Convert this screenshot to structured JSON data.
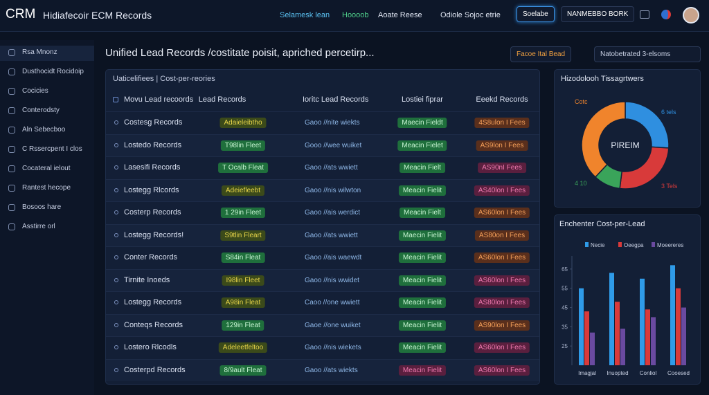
{
  "header": {
    "logo": "CRM",
    "title": "Hidiafecoir ECM Records",
    "nav": [
      "Selamesk lean",
      "Hoooob",
      "Aoate Reese",
      "Odiole Sojoc etrie"
    ],
    "button": "Soelabe",
    "account": "NANMEBBO BORK"
  },
  "sidebar": {
    "items": [
      "Rsa Mnonz",
      "Dusthocidt Rocidoip",
      "Cocicies",
      "Conterodsty",
      "Aln Sebecboo",
      "C Rssercpent I clos",
      "Cocateral ielout",
      "Rantest hecope",
      "Bosoos hare",
      "Asstirre orl"
    ]
  },
  "main": {
    "title": "Unified Lead Records /costitate poisit, apriched percetirp...",
    "filter": "Facoe Ital Bead",
    "select": "Natobetrated 3-elsoms"
  },
  "table": {
    "caption": "Uaticelifiees | Cost-per-reories",
    "columns": [
      "Movu Lead recoords",
      "Lead Records",
      "Ioritc Lead Records",
      "Lostiei fiprar",
      "Eeekd Records"
    ],
    "rows": [
      [
        "Costesg Records",
        "Adaieleibtho",
        "Gaoo //nite wiekts",
        "Maecin Fieldt",
        "4S8ulon I Fees"
      ],
      [
        "Lostedo Records",
        "T98lin Fleet",
        "Gooo //wee wuiket",
        "Meacin Fielet",
        "AS9lon I Fees"
      ],
      [
        "Lasesifi Records",
        "T Ocalb Fleat",
        "Gaoo //ats wwiett",
        "Meacin Fielt",
        "AS90nI Fees"
      ],
      [
        "Lostegg Rlcords",
        "Adeiefleebt",
        "Gaoo //nis wilwton",
        "Meacin Fielit",
        "AS40lon I Fees"
      ],
      [
        "Costerp Records",
        "1 29in Fleet",
        "Gaoo //ais werdict",
        "Meacin Fielt",
        "AS60lon I Fees"
      ],
      [
        "Lostegg Records!",
        "S9tlin Fleart",
        "Gaoo //ats wwiett",
        "Maecin Fielit",
        "AS80on I Fees"
      ],
      [
        "Conter Records",
        "S84in Fleat",
        "Gaoo //ais waewdt",
        "Meacin Fielit",
        "AS60lon I Fees"
      ],
      [
        "Tirnite Inoeds",
        "I98lin Fleet",
        "Gaoo //nis wwidet",
        "Meacin Fielit",
        "AS60lon I Fees"
      ],
      [
        "Lostegg Records",
        "A98in Fleat",
        "Caoo //one wwiett",
        "Meacin Fielit",
        "AS80lon I Fees"
      ],
      [
        "Conteqs Records",
        "129in Fleat",
        "Gaoe //one wuiket",
        "Meacin Fielit",
        "AS90lon I Fees"
      ],
      [
        "Lostero Rlcodls",
        "Adeleetfeltoo",
        "Gaoo //nis wiekets",
        "Meacin Fielit",
        "AS60lon I Fees"
      ],
      [
        "Costerpd Records",
        "8/9ault Fleat",
        "Gaoo //ats wiekts",
        "Meacin Fielit",
        "AS60lon I Fees"
      ]
    ],
    "tones": [
      [
        "yellow",
        "green",
        "orange"
      ],
      [
        "green",
        "green",
        "orange"
      ],
      [
        "green",
        "green",
        "pink"
      ],
      [
        "yellow",
        "green",
        "pink"
      ],
      [
        "green",
        "green",
        "orange"
      ],
      [
        "yellow",
        "green",
        "orange"
      ],
      [
        "green",
        "green",
        "orange"
      ],
      [
        "yellow",
        "green",
        "pink"
      ],
      [
        "yellow",
        "green",
        "pink"
      ],
      [
        "green",
        "green",
        "orange"
      ],
      [
        "yellow",
        "green",
        "pink"
      ],
      [
        "green",
        "pink",
        "pink"
      ]
    ]
  },
  "chart_data": [
    {
      "type": "pie",
      "title": "Hizodolooh Tissagrtwers",
      "center_label": "PIREIM",
      "categories": [
        "6 tels",
        "3 Tels",
        "4 10",
        "Cotc"
      ],
      "values": [
        26,
        26,
        10,
        38
      ],
      "colors": [
        "#2f8fe0",
        "#d83a3a",
        "#3aa45a",
        "#f0842c"
      ]
    },
    {
      "type": "bar",
      "title": "Enchenter Cost-per-Lead",
      "categories": [
        "Imagjal",
        "Inuopted",
        "Conliol",
        "Cooesed"
      ],
      "series": [
        {
          "name": "Necie",
          "color": "#2f9be8",
          "values": [
            55,
            63,
            60,
            67
          ]
        },
        {
          "name": "Oeegpa",
          "color": "#d83a3a",
          "values": [
            43,
            48,
            44,
            55
          ]
        },
        {
          "name": "Moeereres",
          "color": "#6a4aa0",
          "values": [
            32,
            34,
            40,
            45
          ]
        }
      ],
      "ylim": [
        15,
        70
      ],
      "yticks": [
        25,
        35,
        45,
        55,
        65
      ]
    }
  ]
}
